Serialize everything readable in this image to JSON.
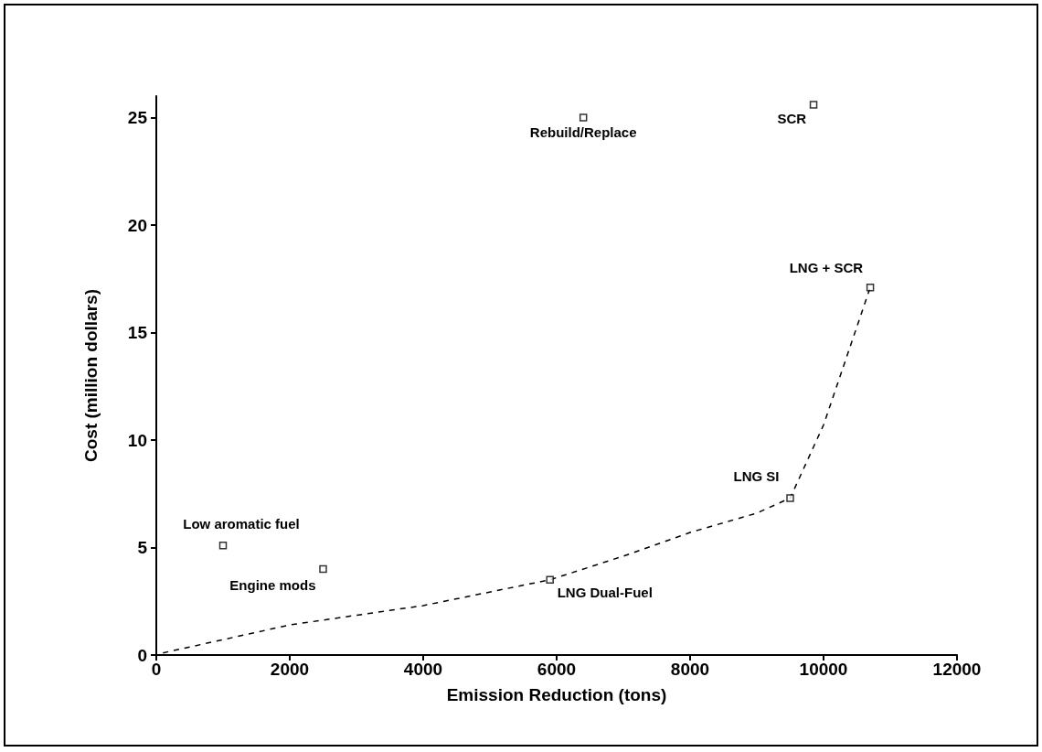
{
  "chart_data": {
    "type": "scatter",
    "xlabel": "Emission Reduction (tons)",
    "ylabel": "Cost (million dollars)",
    "xlim": [
      0,
      12000
    ],
    "xticks": [
      0,
      2000,
      4000,
      6000,
      8000,
      10000,
      12000
    ],
    "ylim": [
      0,
      26
    ],
    "yticks": [
      0,
      5,
      10,
      15,
      20,
      25
    ],
    "grid": false,
    "marker": "square",
    "series": [
      {
        "color": "#000000",
        "x": [
          1000,
          2500,
          5900,
          6400,
          9850,
          9500,
          10700
        ],
        "values": [
          5.1,
          4.0,
          3.5,
          25.0,
          25.6,
          7.3,
          17.1
        ]
      },
      {
        "type": "line",
        "color": "#000000",
        "line_style": "dashed",
        "marker": "none",
        "x": [
          100,
          2000,
          4000,
          5900,
          7000,
          8000,
          9000,
          9500,
          10000,
          10700
        ],
        "values": [
          0.1,
          1.4,
          2.3,
          3.5,
          4.6,
          5.7,
          6.6,
          7.3,
          10.7,
          17.1
        ]
      }
    ],
    "annotations": [
      {
        "text": "Low aromatic fuel",
        "x": 1000,
        "y": 5.1
      },
      {
        "text": "Engine mods",
        "x": 2500,
        "y": 4.0
      },
      {
        "text": "LNG Dual-Fuel",
        "x": 5900,
        "y": 3.5
      },
      {
        "text": "Rebuild/Replace",
        "x": 6400,
        "y": 25.0
      },
      {
        "text": "SCR",
        "x": 9850,
        "y": 25.6
      },
      {
        "text": "LNG SI",
        "x": 9500,
        "y": 7.3
      },
      {
        "text": "LNG + SCR",
        "x": 10700,
        "y": 17.1
      }
    ]
  }
}
